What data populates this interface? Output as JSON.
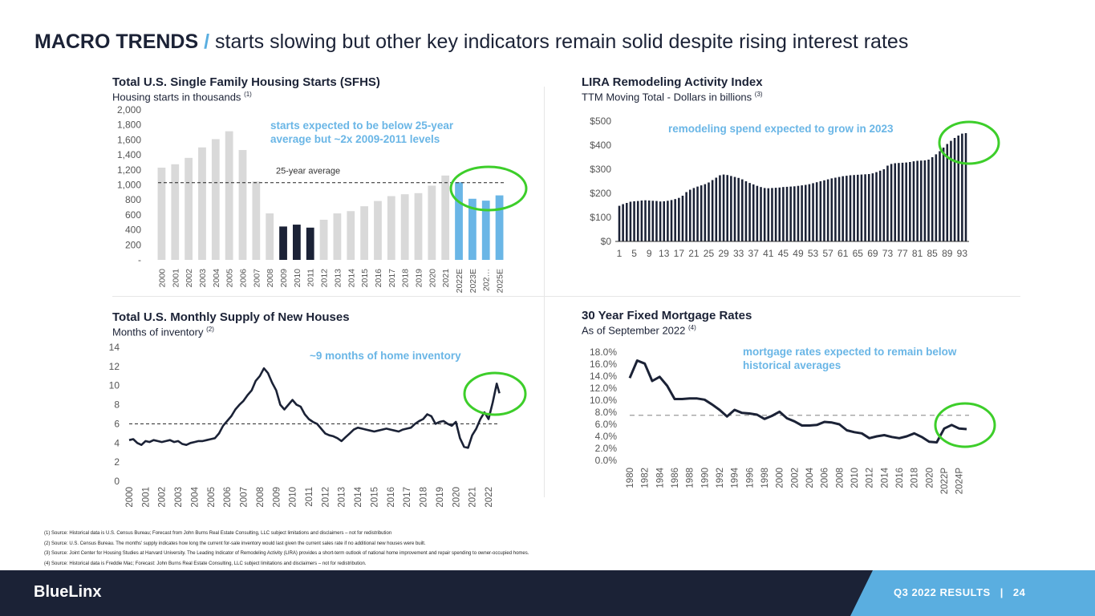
{
  "header": {
    "title_bold": "MACRO TRENDS",
    "title_slash": "/",
    "title_rest": "starts slowing but other key indicators remain solid despite rising interest rates"
  },
  "colors": {
    "navy": "#1b2236",
    "light_blue": "#6ab6e6",
    "gray_bar": "#d9d9d9",
    "highlight_circle": "#3dce2a"
  },
  "charts": {
    "sfhs": {
      "title": "Total U.S. Single Family Housing Starts (SFHS)",
      "subtitle": "Housing starts in thousands",
      "subtitle_ref": "(1)",
      "callout": "starts expected to be below 25-year average but ~2x 2009-2011 levels",
      "avg_label": "25-year average"
    },
    "lira": {
      "title": "LIRA Remodeling Activity Index",
      "subtitle": "TTM Moving Total - Dollars in billions",
      "subtitle_ref": "(3)",
      "callout": "remodeling spend expected to grow in 2023"
    },
    "supply": {
      "title": "Total U.S. Monthly Supply of New Houses",
      "subtitle": "Months of inventory",
      "subtitle_ref": "(2)",
      "callout": "~9 months of home inventory"
    },
    "mortgage": {
      "title": "30 Year Fixed Mortgage Rates",
      "subtitle": "As of September 2022",
      "subtitle_ref": "(4)",
      "callout": "mortgage rates expected to remain below historical averages"
    }
  },
  "chart_data": [
    {
      "type": "bar",
      "title": "Total U.S. Single Family Housing Starts (SFHS)",
      "ylabel": "Housing starts in thousands",
      "ylim": [
        0,
        2000
      ],
      "yticks": [
        "-",
        "200",
        "400",
        "600",
        "800",
        "1,000",
        "1,200",
        "1,400",
        "1,600",
        "1,800",
        "2,000"
      ],
      "categories": [
        "2000",
        "2001",
        "2002",
        "2003",
        "2004",
        "2005",
        "2006",
        "2007",
        "2008",
        "2009",
        "2010",
        "2011",
        "2012",
        "2013",
        "2014",
        "2015",
        "2016",
        "2017",
        "2018",
        "2019",
        "2020",
        "2021",
        "2022E",
        "2023E",
        "202…",
        "2025E"
      ],
      "values": [
        1230,
        1275,
        1360,
        1500,
        1610,
        1715,
        1465,
        1045,
        620,
        445,
        470,
        430,
        535,
        620,
        650,
        715,
        785,
        850,
        875,
        890,
        990,
        1125,
        1035,
        815,
        790,
        860
      ],
      "bar_groups": [
        "historical",
        "historical",
        "historical",
        "historical",
        "historical",
        "historical",
        "historical",
        "historical",
        "historical",
        "trough",
        "trough",
        "trough",
        "historical",
        "historical",
        "historical",
        "historical",
        "historical",
        "historical",
        "historical",
        "historical",
        "historical",
        "historical",
        "forecast",
        "forecast",
        "forecast",
        "forecast"
      ],
      "reference_line": {
        "label": "25-year average",
        "value": 1030
      },
      "grid": false
    },
    {
      "type": "bar",
      "title": "LIRA Remodeling Activity Index",
      "ylabel": "TTM Moving Total - Dollars in billions",
      "ylim": [
        0,
        500
      ],
      "yticks": [
        "$0",
        "$100",
        "$200",
        "$300",
        "$400",
        "$500"
      ],
      "xtick_labels": [
        "1",
        "5",
        "9",
        "13",
        "17",
        "21",
        "25",
        "29",
        "33",
        "37",
        "41",
        "45",
        "49",
        "53",
        "57",
        "61",
        "65",
        "69",
        "73",
        "77",
        "81",
        "85",
        "89",
        "93"
      ],
      "x": [
        1,
        2,
        3,
        4,
        5,
        6,
        7,
        8,
        9,
        10,
        11,
        12,
        13,
        14,
        15,
        16,
        17,
        18,
        19,
        20,
        21,
        22,
        23,
        24,
        25,
        26,
        27,
        28,
        29,
        30,
        31,
        32,
        33,
        34,
        35,
        36,
        37,
        38,
        39,
        40,
        41,
        42,
        43,
        44,
        45,
        46,
        47,
        48,
        49,
        50,
        51,
        52,
        53,
        54,
        55,
        56,
        57,
        58,
        59,
        60,
        61,
        62,
        63,
        64,
        65,
        66,
        67,
        68,
        69,
        70,
        71,
        72,
        73,
        74,
        75,
        76,
        77,
        78,
        79,
        80,
        81,
        82,
        83,
        84,
        85,
        86,
        87,
        88,
        89,
        90,
        91,
        92,
        93,
        94
      ],
      "values": [
        148,
        155,
        160,
        165,
        167,
        168,
        170,
        171,
        170,
        169,
        168,
        166,
        167,
        169,
        172,
        176,
        181,
        190,
        205,
        215,
        222,
        228,
        233,
        238,
        245,
        255,
        265,
        275,
        278,
        276,
        272,
        268,
        264,
        258,
        250,
        243,
        237,
        231,
        226,
        222,
        221,
        222,
        223,
        224,
        226,
        227,
        228,
        229,
        231,
        233,
        235,
        238,
        242,
        246,
        250,
        254,
        258,
        262,
        265,
        268,
        271,
        273,
        275,
        276,
        277,
        278,
        279,
        280,
        283,
        288,
        294,
        300,
        315,
        322,
        325,
        326,
        327,
        328,
        330,
        333,
        335,
        336,
        337,
        340,
        350,
        362,
        375,
        390,
        405,
        418,
        430,
        440,
        448,
        450
      ],
      "grid": false
    },
    {
      "type": "line",
      "title": "Total U.S. Monthly Supply of New Houses",
      "ylabel": "Months of inventory",
      "ylim": [
        0,
        14
      ],
      "yticks": [
        "0",
        "2",
        "4",
        "6",
        "8",
        "10",
        "12",
        "14"
      ],
      "xticks": [
        "2000",
        "2001",
        "2002",
        "2003",
        "2004",
        "2005",
        "2006",
        "2007",
        "2008",
        "2009",
        "2010",
        "2011",
        "2012",
        "2013",
        "2014",
        "2015",
        "2016",
        "2017",
        "2018",
        "2019",
        "2020",
        "2021",
        "2022"
      ],
      "x": [
        2000.0,
        2000.25,
        2000.5,
        2000.75,
        2001.0,
        2001.25,
        2001.5,
        2001.75,
        2002.0,
        2002.25,
        2002.5,
        2002.75,
        2003.0,
        2003.25,
        2003.5,
        2003.75,
        2004.0,
        2004.25,
        2004.5,
        2004.75,
        2005.0,
        2005.25,
        2005.5,
        2005.75,
        2006.0,
        2006.25,
        2006.5,
        2006.75,
        2007.0,
        2007.25,
        2007.5,
        2007.75,
        2008.0,
        2008.25,
        2008.5,
        2008.75,
        2009.0,
        2009.25,
        2009.5,
        2009.75,
        2010.0,
        2010.25,
        2010.5,
        2010.75,
        2011.0,
        2011.25,
        2011.5,
        2011.75,
        2012.0,
        2012.25,
        2012.5,
        2012.75,
        2013.0,
        2013.25,
        2013.5,
        2013.75,
        2014.0,
        2014.25,
        2014.5,
        2014.75,
        2015.0,
        2015.25,
        2015.5,
        2015.75,
        2016.0,
        2016.25,
        2016.5,
        2016.75,
        2017.0,
        2017.25,
        2017.5,
        2017.75,
        2018.0,
        2018.25,
        2018.5,
        2018.75,
        2019.0,
        2019.25,
        2019.5,
        2019.75,
        2020.0,
        2020.25,
        2020.5,
        2020.75,
        2021.0,
        2021.25,
        2021.5,
        2021.75,
        2022.0,
        2022.25,
        2022.5,
        2022.67
      ],
      "series": [
        {
          "name": "",
          "values": [
            4.3,
            4.4,
            4.0,
            3.8,
            4.2,
            4.1,
            4.3,
            4.2,
            4.1,
            4.2,
            4.3,
            4.1,
            4.2,
            3.9,
            3.8,
            4.0,
            4.1,
            4.2,
            4.2,
            4.3,
            4.4,
            4.5,
            5.0,
            5.8,
            6.3,
            6.8,
            7.5,
            8.0,
            8.4,
            9.0,
            9.5,
            10.5,
            11.0,
            11.8,
            11.3,
            10.3,
            9.5,
            8.0,
            7.5,
            8.0,
            8.5,
            8.0,
            7.8,
            7.0,
            6.5,
            6.2,
            6.0,
            5.5,
            5.0,
            4.8,
            4.7,
            4.5,
            4.2,
            4.6,
            5.0,
            5.4,
            5.6,
            5.5,
            5.4,
            5.3,
            5.2,
            5.3,
            5.4,
            5.5,
            5.4,
            5.3,
            5.2,
            5.4,
            5.5,
            5.6,
            6.0,
            6.3,
            6.5,
            7.0,
            6.8,
            6.0,
            6.2,
            6.3,
            6.0,
            5.8,
            6.2,
            4.5,
            3.6,
            3.5,
            4.8,
            5.5,
            6.5,
            7.2,
            6.5,
            8.2,
            10.2,
            9.2
          ]
        }
      ],
      "reference_line": {
        "value": 6.0
      },
      "grid": false
    },
    {
      "type": "line",
      "title": "30 Year Fixed Mortgage Rates",
      "ylabel": "As of September 2022",
      "ylim": [
        0,
        18
      ],
      "yticks": [
        "0.0%",
        "2.0%",
        "4.0%",
        "6.0%",
        "8.0%",
        "10.0%",
        "12.0%",
        "14.0%",
        "16.0%",
        "18.0%"
      ],
      "xticks": [
        "1980",
        "1982",
        "1984",
        "1986",
        "1988",
        "1990",
        "1992",
        "1994",
        "1996",
        "1998",
        "2000",
        "2002",
        "2004",
        "2006",
        "2008",
        "2010",
        "2012",
        "2014",
        "2016",
        "2018",
        "2020",
        "2022P",
        "2024P"
      ],
      "x": [
        1980,
        1981,
        1982,
        1983,
        1984,
        1985,
        1986,
        1987,
        1988,
        1989,
        1990,
        1991,
        1992,
        1993,
        1994,
        1995,
        1996,
        1997,
        1998,
        1999,
        2000,
        2001,
        2002,
        2003,
        2004,
        2005,
        2006,
        2007,
        2008,
        2009,
        2010,
        2011,
        2012,
        2013,
        2014,
        2015,
        2016,
        2017,
        2018,
        2019,
        2020,
        2021,
        2022,
        2023,
        2024,
        2025
      ],
      "series": [
        {
          "name": "",
          "values": [
            13.7,
            16.6,
            16.1,
            13.2,
            13.9,
            12.4,
            10.2,
            10.2,
            10.3,
            10.3,
            10.1,
            9.3,
            8.4,
            7.3,
            8.4,
            7.9,
            7.8,
            7.6,
            6.9,
            7.4,
            8.1,
            7.0,
            6.5,
            5.8,
            5.8,
            5.9,
            6.4,
            6.3,
            6.0,
            5.0,
            4.7,
            4.5,
            3.7,
            4.0,
            4.2,
            3.9,
            3.7,
            4.0,
            4.5,
            3.9,
            3.1,
            3.0,
            5.3,
            5.9,
            5.3,
            5.2
          ]
        }
      ],
      "reference_line": {
        "value": 7.5
      },
      "grid": false
    }
  ],
  "footnotes": [
    "(1) Source: Historical data is U.S. Census Bureau; Forecast from John Burns Real Estate Consulting, LLC subject limitations and disclaimers – not for redistribution",
    "(2) Source: U.S. Census Bureau. The months' supply indicates how long the current for-sale inventory would last given the current sales rate if no additional new houses were built.",
    "(3) Source: Joint Center for Housing Studies at Harvard University. The Leading Indicator of Remodeling Activity (LIRA) provides a short-term outlook of national home improvement and repair spending to owner-occupied homes.",
    "(4) Source: Historical data is Freddie Mac; Forecast: John Burns Real Estate Consulting, LLC subject limitations and disclaimers – not for redistribution."
  ],
  "footer": {
    "logo": "BlueLinx",
    "section": "Q3 2022 RESULTS",
    "separator": "|",
    "page": "24"
  }
}
